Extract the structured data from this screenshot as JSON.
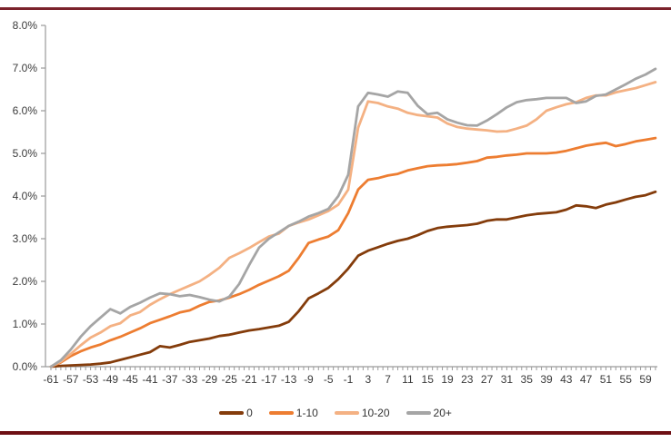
{
  "page": {
    "background": "#ffffff",
    "top_rule_color": "#7b222b",
    "bottom_rule_color": "#6e0f14"
  },
  "chart_data": {
    "type": "line",
    "title": "",
    "xlabel": "",
    "ylabel": "",
    "grid": false,
    "legend_position": "bottom",
    "axis_color": "#9a9a9a",
    "label_color": "#3a3a3a",
    "ylim": [
      0,
      8
    ],
    "ytick_labels": [
      "0.0%",
      "1.0%",
      "2.0%",
      "3.0%",
      "4.0%",
      "5.0%",
      "6.0%",
      "7.0%",
      "8.0%"
    ],
    "xtick_labels": [
      "-61",
      "-57",
      "-53",
      "-49",
      "-45",
      "-41",
      "-37",
      "-33",
      "-29",
      "-25",
      "-21",
      "-17",
      "-13",
      "-9",
      "-5",
      "-1",
      "3",
      "7",
      "11",
      "15",
      "19",
      "23",
      "27",
      "31",
      "35",
      "39",
      "43",
      "47",
      "51",
      "55",
      "59"
    ],
    "x": [
      -61,
      -59,
      -57,
      -55,
      -53,
      -51,
      -49,
      -47,
      -45,
      -43,
      -41,
      -39,
      -37,
      -35,
      -33,
      -31,
      -29,
      -27,
      -25,
      -23,
      -21,
      -19,
      -17,
      -15,
      -13,
      -11,
      -9,
      -7,
      -5,
      -3,
      -1,
      1,
      3,
      5,
      7,
      9,
      11,
      13,
      15,
      17,
      19,
      21,
      23,
      25,
      27,
      29,
      31,
      33,
      35,
      37,
      39,
      41,
      43,
      45,
      47,
      49,
      51,
      53,
      55,
      57,
      59,
      61
    ],
    "series": [
      {
        "name": "0",
        "color": "#843C0B",
        "values": [
          0.0,
          0.02,
          0.03,
          0.04,
          0.05,
          0.07,
          0.1,
          0.16,
          0.22,
          0.28,
          0.34,
          0.48,
          0.45,
          0.51,
          0.58,
          0.62,
          0.66,
          0.72,
          0.75,
          0.8,
          0.85,
          0.88,
          0.92,
          0.96,
          1.05,
          1.3,
          1.6,
          1.72,
          1.85,
          2.05,
          2.3,
          2.6,
          2.72,
          2.8,
          2.88,
          2.95,
          3.0,
          3.08,
          3.18,
          3.25,
          3.28,
          3.3,
          3.32,
          3.35,
          3.42,
          3.45,
          3.45,
          3.5,
          3.55,
          3.58,
          3.6,
          3.62,
          3.68,
          3.78,
          3.76,
          3.72,
          3.8,
          3.85,
          3.92,
          3.98,
          4.02,
          4.1
        ]
      },
      {
        "name": "1-10",
        "color": "#ED7D31",
        "values": [
          0.0,
          0.1,
          0.25,
          0.36,
          0.45,
          0.52,
          0.62,
          0.7,
          0.8,
          0.9,
          1.02,
          1.1,
          1.18,
          1.27,
          1.32,
          1.43,
          1.52,
          1.55,
          1.62,
          1.7,
          1.8,
          1.92,
          2.02,
          2.12,
          2.25,
          2.55,
          2.9,
          2.98,
          3.05,
          3.2,
          3.6,
          4.15,
          4.38,
          4.42,
          4.48,
          4.52,
          4.6,
          4.65,
          4.7,
          4.72,
          4.73,
          4.75,
          4.78,
          4.82,
          4.9,
          4.92,
          4.95,
          4.97,
          5.0,
          5.0,
          5.0,
          5.02,
          5.06,
          5.12,
          5.18,
          5.22,
          5.25,
          5.17,
          5.22,
          5.28,
          5.32,
          5.36
        ]
      },
      {
        "name": "10-20",
        "color": "#F4B183",
        "values": [
          0.0,
          0.12,
          0.3,
          0.5,
          0.68,
          0.8,
          0.95,
          1.02,
          1.2,
          1.28,
          1.45,
          1.58,
          1.7,
          1.8,
          1.9,
          2.0,
          2.15,
          2.32,
          2.55,
          2.66,
          2.78,
          2.92,
          3.05,
          3.12,
          3.3,
          3.38,
          3.45,
          3.55,
          3.65,
          3.8,
          4.15,
          5.6,
          6.22,
          6.18,
          6.1,
          6.05,
          5.95,
          5.9,
          5.87,
          5.84,
          5.7,
          5.62,
          5.58,
          5.56,
          5.54,
          5.51,
          5.52,
          5.58,
          5.65,
          5.8,
          6.0,
          6.08,
          6.15,
          6.2,
          6.3,
          6.36,
          6.36,
          6.43,
          6.48,
          6.53,
          6.6,
          6.67
        ]
      },
      {
        "name": "20+",
        "color": "#A5A5A5",
        "values": [
          0.0,
          0.15,
          0.4,
          0.7,
          0.95,
          1.15,
          1.35,
          1.25,
          1.4,
          1.5,
          1.62,
          1.72,
          1.7,
          1.65,
          1.68,
          1.63,
          1.57,
          1.53,
          1.64,
          1.94,
          2.38,
          2.79,
          3.0,
          3.15,
          3.3,
          3.4,
          3.52,
          3.6,
          3.7,
          4.0,
          4.5,
          6.1,
          6.42,
          6.38,
          6.33,
          6.45,
          6.42,
          6.12,
          5.92,
          5.95,
          5.8,
          5.72,
          5.66,
          5.65,
          5.77,
          5.92,
          6.08,
          6.2,
          6.25,
          6.27,
          6.3,
          6.3,
          6.3,
          6.18,
          6.22,
          6.35,
          6.38,
          6.5,
          6.62,
          6.75,
          6.85,
          6.98
        ]
      }
    ]
  }
}
